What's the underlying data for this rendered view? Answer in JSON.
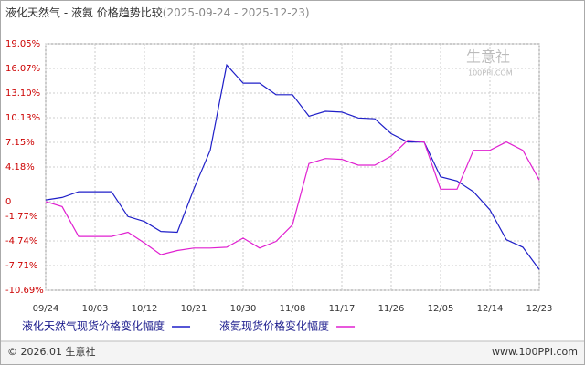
{
  "chart_data": {
    "type": "line",
    "title": "液化天然气 - 液氨 价格趋势比较",
    "subtitle": "(2025-09-24 - 2025-12-23)",
    "x": [
      "09/24",
      "09/27",
      "09/30",
      "10/03",
      "10/06",
      "10/09",
      "10/12",
      "10/15",
      "10/18",
      "10/21",
      "10/24",
      "10/27",
      "10/30",
      "11/02",
      "11/05",
      "11/08",
      "11/11",
      "11/14",
      "11/17",
      "11/20",
      "11/23",
      "11/26",
      "11/29",
      "12/02",
      "12/05",
      "12/08",
      "12/11",
      "12/14",
      "12/17",
      "12/20",
      "12/23"
    ],
    "xticks": [
      "09/24",
      "10/03",
      "10/12",
      "10/21",
      "10/30",
      "11/08",
      "11/17",
      "11/26",
      "12/05",
      "12/14",
      "12/23"
    ],
    "series": [
      {
        "name": "液化天然气现货价格变化幅度",
        "color": "#1f1fc8",
        "values": [
          0.2,
          0.5,
          1.2,
          1.2,
          1.2,
          -1.8,
          -2.4,
          -3.6,
          -3.7,
          1.5,
          6.2,
          16.5,
          14.3,
          14.3,
          12.9,
          12.9,
          10.3,
          10.9,
          10.8,
          10.1,
          10.0,
          8.2,
          7.2,
          7.2,
          3.0,
          2.5,
          1.2,
          -1.0,
          -4.6,
          -5.5,
          -8.2
        ]
      },
      {
        "name": "液氨现货价格变化幅度",
        "color": "#e020d0",
        "values": [
          0.0,
          -0.6,
          -4.2,
          -4.2,
          -4.2,
          -3.7,
          -5.0,
          -6.4,
          -5.9,
          -5.6,
          -5.6,
          -5.5,
          -4.4,
          -5.6,
          -4.8,
          -2.8,
          4.6,
          5.2,
          5.1,
          4.4,
          4.4,
          5.5,
          7.4,
          7.2,
          1.5,
          1.5,
          6.2,
          6.2,
          7.2,
          6.2,
          2.6
        ]
      }
    ],
    "ylim": [
      -10.69,
      19.05
    ],
    "yticks": [
      {
        "value": 19.05,
        "label": "19.05%"
      },
      {
        "value": 16.07,
        "label": "16.07%"
      },
      {
        "value": 13.1,
        "label": "13.10%"
      },
      {
        "value": 10.13,
        "label": "10.13%"
      },
      {
        "value": 7.15,
        "label": "7.15%"
      },
      {
        "value": 4.18,
        "label": "4.18%"
      },
      0,
      {
        "value": -1.77,
        "label": "-1.77%"
      },
      {
        "value": -4.74,
        "label": "-4.74%"
      },
      {
        "value": -7.71,
        "label": "-7.71%"
      },
      {
        "value": -10.69,
        "label": "-10.69%"
      }
    ],
    "grid": true,
    "watermark": "生意社",
    "watermark_sub": "100PPI.COM",
    "footer_left": "© 2026.01 生意社",
    "footer_right": "www.100PPI.com"
  }
}
